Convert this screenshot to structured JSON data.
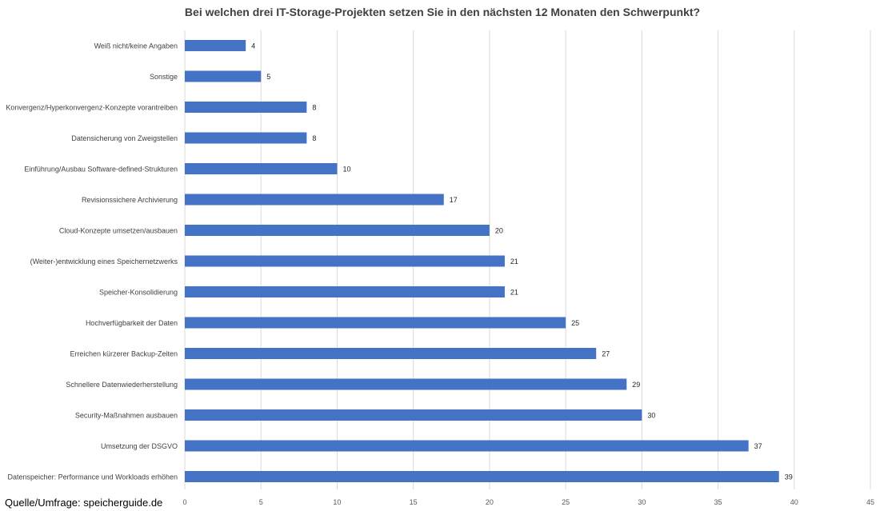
{
  "chart_data": {
    "type": "bar",
    "orientation": "horizontal",
    "title": "Bei welchen drei IT-Storage-Projekten setzen Sie in den nächsten 12 Monaten den Schwerpunkt?",
    "categories": [
      "Weiß nicht/keine Angaben",
      "Sonstige",
      "Konvergenz/Hyperkonvergenz-Konzepte vorantreiben",
      "Datensicherung von Zweigstellen",
      "Einführung/Ausbau Software-defined-Strukturen",
      "Revisionssichere Archivierung",
      "Cloud-Konzepte umsetzen/ausbauen",
      "(Weiter-)entwicklung eines Speichernetzwerks",
      "Speicher-Konsolidierung",
      "Hochverfügbarkeit der Daten",
      "Erreichen kürzerer Backup-Zeiten",
      "Schnellere Datenwiederherstellung",
      "Security-Maßnahmen ausbauen",
      "Umsetzung der DSGVO",
      "Datenspeicher: Performance und Workloads erhöhen"
    ],
    "values": [
      4,
      5,
      8,
      8,
      10,
      17,
      20,
      21,
      21,
      25,
      27,
      29,
      30,
      37,
      39
    ],
    "xlim": [
      0,
      45
    ],
    "xticks": [
      0,
      5,
      10,
      15,
      20,
      25,
      30,
      35,
      40,
      45
    ],
    "grid": "vertical",
    "data_labels": true,
    "bar_color": "#4472c4",
    "legend": "none"
  },
  "source": "Quelle/Umfrage: speicherguide.de"
}
